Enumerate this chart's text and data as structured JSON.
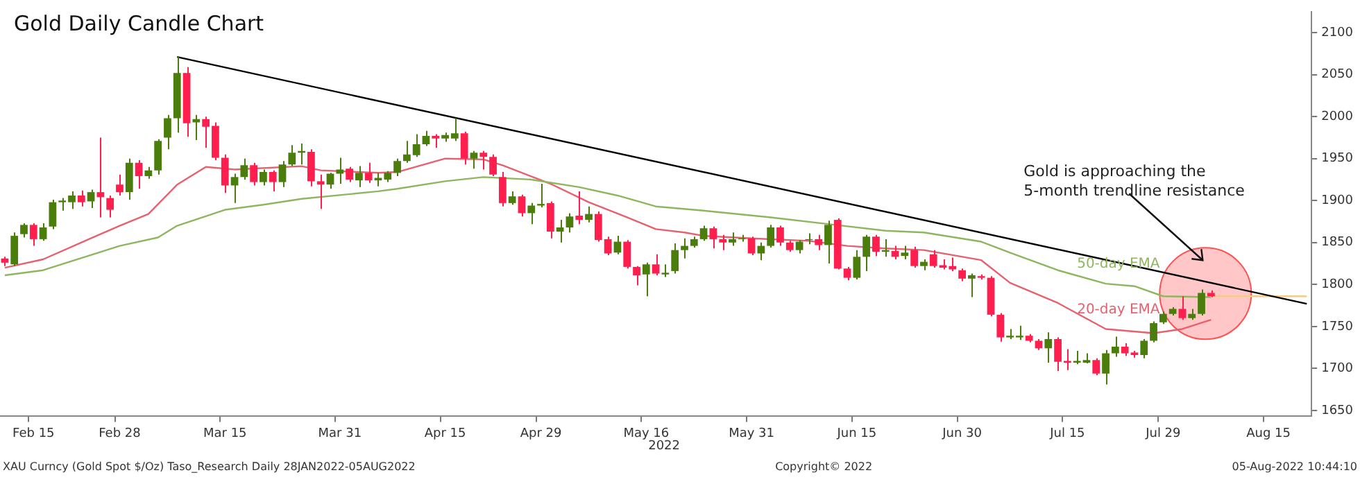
{
  "chart_data": {
    "type": "candlestick",
    "title": "Gold Daily Candle Chart",
    "categories": [
      null,
      null,
      null,
      "Feb 15",
      null,
      null,
      null,
      null,
      null,
      null,
      null,
      null,
      "Feb 28",
      null,
      null,
      null,
      null,
      null,
      null,
      null,
      null,
      null,
      null,
      "Mar 15",
      null,
      null,
      null,
      null,
      null,
      null,
      null,
      null,
      null,
      null,
      null,
      "Mar 31",
      null,
      null,
      null,
      null,
      null,
      null,
      null,
      null,
      null,
      null,
      "Apr 15",
      null,
      null,
      null,
      null,
      null,
      null,
      null,
      null,
      null,
      "Apr 29",
      null,
      null,
      null,
      null,
      null,
      null,
      null,
      null,
      null,
      null,
      "May 16",
      null,
      null,
      null,
      null,
      null,
      null,
      null,
      null,
      null,
      null,
      "May 31",
      null,
      null,
      null,
      null,
      null,
      null,
      null,
      null,
      null,
      null,
      "Jun 15",
      null,
      null,
      null,
      null,
      null,
      null,
      null,
      null,
      null,
      null,
      "Jun 30",
      null,
      null,
      null,
      null,
      null,
      null,
      null,
      null,
      null,
      null,
      "Jul 15",
      null,
      null,
      null,
      null,
      null,
      null,
      null,
      null,
      null,
      "Jul 29",
      null,
      null,
      null,
      null,
      null,
      null,
      null,
      null,
      null,
      null,
      "Aug 15",
      null,
      null,
      null,
      null
    ],
    "ohlc": [
      [
        1831,
        1833,
        1822,
        1826
      ],
      [
        1824,
        1862,
        1822,
        1858
      ],
      [
        1860,
        1873,
        1856,
        1871
      ],
      [
        1871,
        1873,
        1846,
        1854
      ],
      [
        1854,
        1873,
        1852,
        1868
      ],
      [
        1869,
        1901,
        1866,
        1898
      ],
      [
        1898,
        1903,
        1888,
        1900
      ],
      [
        1898,
        1911,
        1890,
        1906
      ],
      [
        1906,
        1912,
        1893,
        1898
      ],
      [
        1899,
        1913,
        1891,
        1910
      ],
      [
        1910,
        1975,
        1880,
        1904
      ],
      [
        1903,
        1906,
        1880,
        1889
      ],
      [
        1919,
        1931,
        1906,
        1910
      ],
      [
        1910,
        1950,
        1901,
        1945
      ],
      [
        1945,
        1948,
        1914,
        1929
      ],
      [
        1929,
        1940,
        1926,
        1936
      ],
      [
        1936,
        1973,
        1931,
        1971
      ],
      [
        1975,
        2002,
        1961,
        1998
      ],
      [
        1998,
        2071,
        1981,
        2052
      ],
      [
        2052,
        2059,
        1976,
        1992
      ],
      [
        1993,
        2002,
        1972,
        1997
      ],
      [
        1997,
        2000,
        1963,
        1988
      ],
      [
        1989,
        1993,
        1948,
        1951
      ],
      [
        1951,
        1955,
        1909,
        1918
      ],
      [
        1918,
        1932,
        1897,
        1928
      ],
      [
        1928,
        1950,
        1925,
        1942
      ],
      [
        1942,
        1945,
        1918,
        1922
      ],
      [
        1922,
        1937,
        1918,
        1934
      ],
      [
        1934,
        1936,
        1911,
        1922
      ],
      [
        1922,
        1947,
        1916,
        1943
      ],
      [
        1943,
        1966,
        1941,
        1957
      ],
      [
        1957,
        1968,
        1943,
        1959
      ],
      [
        1958,
        1961,
        1917,
        1923
      ],
      [
        1923,
        1931,
        1890,
        1919
      ],
      [
        1919,
        1933,
        1914,
        1932
      ],
      [
        1932,
        1951,
        1920,
        1937
      ],
      [
        1938,
        1940,
        1922,
        1925
      ],
      [
        1924,
        1941,
        1916,
        1933
      ],
      [
        1933,
        1945,
        1921,
        1924
      ],
      [
        1924,
        1933,
        1917,
        1927
      ],
      [
        1925,
        1935,
        1922,
        1933
      ],
      [
        1933,
        1950,
        1929,
        1947
      ],
      [
        1947,
        1971,
        1945,
        1955
      ],
      [
        1954,
        1979,
        1952,
        1967
      ],
      [
        1967,
        1983,
        1965,
        1977
      ],
      [
        1977,
        1979,
        1963,
        1974
      ],
      [
        1974,
        1981,
        1970,
        1978
      ],
      [
        1974,
        1998,
        1971,
        1980
      ],
      [
        1980,
        1982,
        1943,
        1950
      ],
      [
        1950,
        1959,
        1938,
        1957
      ],
      [
        1957,
        1959,
        1937,
        1952
      ],
      [
        1952,
        1955,
        1929,
        1931
      ],
      [
        1928,
        1934,
        1893,
        1897
      ],
      [
        1897,
        1911,
        1895,
        1905
      ],
      [
        1905,
        1907,
        1881,
        1885
      ],
      [
        1885,
        1897,
        1872,
        1894
      ],
      [
        1894,
        1920,
        1892,
        1896
      ],
      [
        1897,
        1899,
        1855,
        1863
      ],
      [
        1863,
        1877,
        1850,
        1868
      ],
      [
        1868,
        1885,
        1862,
        1881
      ],
      [
        1882,
        1911,
        1872,
        1877
      ],
      [
        1877,
        1893,
        1874,
        1884
      ],
      [
        1884,
        1887,
        1851,
        1853
      ],
      [
        1854,
        1857,
        1835,
        1837
      ],
      [
        1838,
        1858,
        1836,
        1851
      ],
      [
        1851,
        1853,
        1819,
        1821
      ],
      [
        1821,
        1822,
        1799,
        1811
      ],
      [
        1812,
        1826,
        1786,
        1824
      ],
      [
        1824,
        1836,
        1811,
        1813
      ],
      [
        1812,
        1824,
        1809,
        1814
      ],
      [
        1816,
        1849,
        1813,
        1841
      ],
      [
        1841,
        1855,
        1831,
        1846
      ],
      [
        1846,
        1857,
        1844,
        1854
      ],
      [
        1854,
        1870,
        1852,
        1867
      ],
      [
        1867,
        1869,
        1843,
        1854
      ],
      [
        1854,
        1859,
        1841,
        1850
      ],
      [
        1850,
        1862,
        1846,
        1854
      ],
      [
        1854,
        1859,
        1851,
        1855
      ],
      [
        1855,
        1857,
        1835,
        1837
      ],
      [
        1837,
        1850,
        1829,
        1846
      ],
      [
        1846,
        1871,
        1844,
        1868
      ],
      [
        1868,
        1870,
        1846,
        1850
      ],
      [
        1850,
        1852,
        1839,
        1841
      ],
      [
        1841,
        1853,
        1837,
        1851
      ],
      [
        1853,
        1861,
        1848,
        1854
      ],
      [
        1854,
        1859,
        1841,
        1847
      ],
      [
        1847,
        1876,
        1825,
        1871
      ],
      [
        1877,
        1879,
        1818,
        1819
      ],
      [
        1819,
        1821,
        1805,
        1808
      ],
      [
        1808,
        1841,
        1806,
        1833
      ],
      [
        1833,
        1859,
        1816,
        1857
      ],
      [
        1857,
        1859,
        1834,
        1839
      ],
      [
        1839,
        1854,
        1833,
        1841
      ],
      [
        1840,
        1846,
        1830,
        1833
      ],
      [
        1834,
        1846,
        1830,
        1838
      ],
      [
        1841,
        1845,
        1820,
        1822
      ],
      [
        1822,
        1830,
        1817,
        1827
      ],
      [
        1836,
        1841,
        1820,
        1822
      ],
      [
        1823,
        1830,
        1818,
        1820
      ],
      [
        1822,
        1832,
        1816,
        1818
      ],
      [
        1817,
        1819,
        1804,
        1807
      ],
      [
        1807,
        1813,
        1785,
        1811
      ],
      [
        1810,
        1812,
        1806,
        1808
      ],
      [
        1808,
        1810,
        1762,
        1764
      ],
      [
        1764,
        1766,
        1732,
        1737
      ],
      [
        1737,
        1747,
        1735,
        1739
      ],
      [
        1737,
        1751,
        1734,
        1739
      ],
      [
        1739,
        1741,
        1731,
        1733
      ],
      [
        1733,
        1735,
        1722,
        1724
      ],
      [
        1724,
        1743,
        1707,
        1735
      ],
      [
        1735,
        1737,
        1697,
        1708
      ],
      [
        1709,
        1723,
        1698,
        1707
      ],
      [
        1707,
        1721,
        1705,
        1709
      ],
      [
        1707,
        1718,
        1706,
        1710
      ],
      [
        1710,
        1712,
        1692,
        1694
      ],
      [
        1694,
        1722,
        1681,
        1718
      ],
      [
        1718,
        1738,
        1714,
        1726
      ],
      [
        1726,
        1730,
        1715,
        1718
      ],
      [
        1719,
        1721,
        1713,
        1716
      ],
      [
        1716,
        1735,
        1712,
        1733
      ],
      [
        1733,
        1756,
        1731,
        1754
      ],
      [
        1755,
        1768,
        1753,
        1765
      ],
      [
        1765,
        1773,
        1763,
        1771
      ],
      [
        1771,
        1786,
        1758,
        1760
      ],
      [
        1760,
        1771,
        1758,
        1765
      ],
      [
        1765,
        1794,
        1763,
        1790
      ],
      [
        1790,
        1793,
        1785,
        1786
      ],
      null,
      null,
      null,
      null,
      null,
      null,
      null,
      null,
      null,
      null
    ],
    "colors": [
      "#ff1f4f",
      "#4b7d0c",
      "#4b7d0c",
      "#ff1f4f",
      "#4b7d0c",
      "#4b7d0c",
      "#4b7d0c",
      "#4b7d0c",
      "#ff1f4f",
      "#4b7d0c",
      "#ff1f4f",
      "#ff1f4f",
      "#ff1f4f",
      "#4b7d0c",
      "#ff1f4f",
      "#4b7d0c",
      "#4b7d0c",
      "#4b7d0c",
      "#4b7d0c",
      "#ff1f4f",
      "#4b7d0c",
      "#ff1f4f",
      "#ff1f4f",
      "#ff1f4f",
      "#4b7d0c",
      "#4b7d0c",
      "#ff1f4f",
      "#4b7d0c",
      "#ff1f4f",
      "#4b7d0c",
      "#4b7d0c",
      "#4b7d0c",
      "#ff1f4f",
      "#ff1f4f",
      "#4b7d0c",
      "#4b7d0c",
      "#ff1f4f",
      "#4b7d0c",
      "#ff1f4f",
      "#4b7d0c",
      "#4b7d0c",
      "#4b7d0c",
      "#4b7d0c",
      "#4b7d0c",
      "#4b7d0c",
      "#ff1f4f",
      "#4b7d0c",
      "#4b7d0c",
      "#ff1f4f",
      "#4b7d0c",
      "#ff1f4f",
      "#ff1f4f",
      "#ff1f4f",
      "#4b7d0c",
      "#ff1f4f",
      "#4b7d0c",
      "#4b7d0c",
      "#ff1f4f",
      "#4b7d0c",
      "#4b7d0c",
      "#ff1f4f",
      "#4b7d0c",
      "#ff1f4f",
      "#ff1f4f",
      "#4b7d0c",
      "#ff1f4f",
      "#ff1f4f",
      "#4b7d0c",
      "#ff1f4f",
      "#4b7d0c",
      "#4b7d0c",
      "#4b7d0c",
      "#4b7d0c",
      "#4b7d0c",
      "#ff1f4f",
      "#ff1f4f",
      "#4b7d0c",
      "#4b7d0c",
      "#ff1f4f",
      "#4b7d0c",
      "#4b7d0c",
      "#ff1f4f",
      "#ff1f4f",
      "#4b7d0c",
      "#4b7d0c",
      "#ff1f4f",
      "#4b7d0c",
      "#ff1f4f",
      "#ff1f4f",
      "#4b7d0c",
      "#4b7d0c",
      "#ff1f4f",
      "#4b7d0c",
      "#ff1f4f",
      "#4b7d0c",
      "#ff1f4f",
      "#4b7d0c",
      "#ff1f4f",
      "#ff1f4f",
      "#ff1f4f",
      "#ff1f4f",
      "#4b7d0c",
      "#ff1f4f",
      "#ff1f4f",
      "#ff1f4f",
      "#4b7d0c",
      "#4b7d0c",
      "#ff1f4f",
      "#ff1f4f",
      "#4b7d0c",
      "#ff1f4f",
      "#ff1f4f",
      "#4b7d0c",
      "#4b7d0c",
      "#ff1f4f",
      "#4b7d0c",
      "#4b7d0c",
      "#ff1f4f",
      "#ff1f4f",
      "#4b7d0c",
      "#4b7d0c",
      "#4b7d0c",
      "#4b7d0c",
      "#ff1f4f",
      "#4b7d0c",
      "#4b7d0c",
      "#ff1f4f",
      null,
      null,
      null,
      null,
      null,
      null,
      null,
      null,
      null,
      null
    ],
    "series": [
      {
        "type": "line",
        "name": "50-day EMA",
        "color": "#8db65e",
        "values": [
          1811,
          null,
          null,
          null,
          1817,
          null,
          null,
          null,
          null,
          null,
          null,
          null,
          1846,
          null,
          null,
          null,
          1856,
          null,
          1870,
          null,
          null,
          null,
          null,
          1889,
          null,
          null,
          null,
          1895,
          null,
          null,
          null,
          1902,
          null,
          null,
          null,
          null,
          null,
          null,
          null,
          1911,
          null,
          1914,
          null,
          null,
          null,
          null,
          1923,
          null,
          null,
          null,
          1928,
          null,
          null,
          null,
          null,
          1925,
          null,
          null,
          null,
          null,
          1916,
          null,
          null,
          null,
          1906,
          null,
          null,
          null,
          1893,
          null,
          null,
          null,
          null,
          1888,
          null,
          null,
          null,
          null,
          null,
          null,
          1880,
          null,
          null,
          null,
          null,
          null,
          1872,
          null,
          null,
          null,
          null,
          null,
          1864,
          null,
          null,
          null,
          1862,
          null,
          null,
          null,
          null,
          null,
          1851,
          null,
          null,
          1838,
          null,
          null,
          null,
          null,
          1817,
          null,
          null,
          null,
          null,
          1801,
          null,
          null,
          1798,
          null,
          null,
          1786,
          null,
          null,
          null,
          null,
          1785,
          null,
          null,
          null,
          null,
          null,
          null,
          null,
          null,
          null,
          null
        ]
      },
      {
        "type": "line",
        "name": "20-day EMA",
        "color": "#e8606e",
        "values": [
          1820,
          null,
          null,
          null,
          1830,
          null,
          null,
          null,
          null,
          1855,
          null,
          null,
          1870,
          null,
          null,
          1884,
          null,
          null,
          1919,
          null,
          null,
          1940,
          null,
          null,
          1937,
          null,
          null,
          null,
          null,
          null,
          null,
          1941,
          null,
          1936,
          null,
          null,
          null,
          null,
          null,
          1933,
          null,
          1934,
          null,
          null,
          null,
          null,
          1950,
          null,
          null,
          null,
          1949,
          null,
          1942,
          null,
          null,
          null,
          null,
          1920,
          null,
          null,
          null,
          1898,
          null,
          null,
          null,
          1880,
          null,
          null,
          1866,
          null,
          null,
          1862,
          null,
          1858,
          null,
          null,
          null,
          null,
          1855,
          null,
          null,
          null,
          null,
          null,
          1852,
          null,
          null,
          null,
          1846,
          null,
          null,
          null,
          1843,
          null,
          null,
          null,
          1841,
          null,
          null,
          null,
          null,
          null,
          1829,
          null,
          null,
          1802,
          null,
          null,
          null,
          null,
          1778,
          null,
          null,
          null,
          null,
          1747,
          null,
          null,
          null,
          null,
          1742,
          null,
          null,
          1747,
          null,
          null,
          1758,
          null,
          null,
          null,
          null,
          null,
          null,
          null,
          null,
          null,
          null
        ]
      },
      {
        "type": "line",
        "color": "#000000",
        "values": [
          null,
          null,
          null,
          null,
          null,
          null,
          null,
          null,
          null,
          null,
          null,
          null,
          null,
          null,
          null,
          null,
          null,
          null,
          2071,
          null,
          null,
          null,
          null,
          null,
          null,
          null,
          null,
          null,
          null,
          null,
          null,
          null,
          null,
          null,
          null,
          null,
          null,
          null,
          null,
          null,
          null,
          null,
          null,
          null,
          null,
          null,
          null,
          null,
          null,
          null,
          null,
          null,
          null,
          null,
          null,
          null,
          null,
          null,
          null,
          null,
          null,
          null,
          null,
          null,
          null,
          null,
          null,
          null,
          null,
          null,
          null,
          null,
          null,
          null,
          null,
          null,
          null,
          null,
          null,
          null,
          null,
          null,
          null,
          null,
          null,
          null,
          null,
          null,
          null,
          null,
          null,
          null,
          null,
          null,
          null,
          null,
          null,
          null,
          null,
          null,
          null,
          null,
          null,
          null,
          null,
          null,
          null,
          null,
          null,
          null,
          null,
          null,
          null,
          null,
          null,
          null,
          null,
          null,
          null,
          null,
          null,
          null,
          null,
          null,
          null,
          null,
          null,
          null,
          null,
          null,
          null,
          null,
          null,
          null,
          null,
          null,
          1777
        ]
      },
      {
        "type": "line",
        "color": "#f7c98a",
        "values": [
          null,
          null,
          null,
          null,
          null,
          null,
          null,
          null,
          null,
          null,
          null,
          null,
          null,
          null,
          null,
          null,
          null,
          null,
          null,
          null,
          null,
          null,
          null,
          null,
          null,
          null,
          null,
          null,
          null,
          null,
          null,
          null,
          null,
          null,
          null,
          null,
          null,
          null,
          null,
          null,
          null,
          null,
          null,
          null,
          null,
          null,
          null,
          null,
          null,
          null,
          null,
          null,
          null,
          null,
          null,
          null,
          null,
          null,
          null,
          null,
          null,
          null,
          null,
          null,
          null,
          null,
          null,
          null,
          null,
          null,
          null,
          null,
          null,
          null,
          null,
          null,
          null,
          null,
          null,
          null,
          null,
          null,
          null,
          null,
          null,
          null,
          null,
          null,
          null,
          null,
          null,
          null,
          null,
          null,
          null,
          null,
          null,
          null,
          null,
          null,
          null,
          null,
          null,
          null,
          null,
          null,
          null,
          null,
          null,
          null,
          null,
          null,
          null,
          null,
          null,
          null,
          null,
          null,
          null,
          null,
          null,
          null,
          null,
          null,
          null,
          null,
          1786,
          null,
          null,
          null,
          null,
          null,
          null,
          null,
          null,
          null,
          1786
        ]
      }
    ],
    "ylim": [
      1643,
      2125
    ],
    "yticks": [
      1650,
      1700,
      1750,
      1800,
      1850,
      1900,
      1950,
      2000,
      2050,
      2100
    ],
    "annotations": [
      "2022",
      "Gold is approaching the\n5-month trendline resistance",
      "XAU Curncy (Gold Spot $/Oz) Taso_Research Daily 28JAN2022-05AUG2022",
      "Copyright© 2022",
      "05-Aug-2022 10:44:10"
    ]
  }
}
